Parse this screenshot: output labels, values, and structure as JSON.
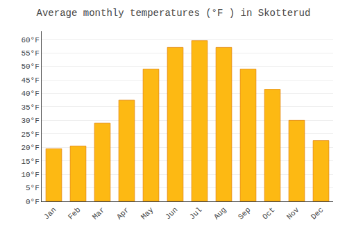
{
  "chart_data": {
    "type": "bar",
    "title": "Average monthly temperatures (°F ) in Skotterud",
    "categories": [
      "Jan",
      "Feb",
      "Mar",
      "Apr",
      "May",
      "Jun",
      "Jul",
      "Aug",
      "Sep",
      "Oct",
      "Nov",
      "Dec"
    ],
    "values": [
      19.5,
      20.5,
      29.0,
      37.5,
      49.0,
      57.0,
      59.5,
      57.0,
      49.0,
      41.5,
      30.0,
      22.5
    ],
    "color": "#FDB913",
    "ylim": [
      0,
      63
    ],
    "yticks": [
      {
        "value": 0,
        "label": "0°F"
      },
      {
        "value": 5,
        "label": "5°F"
      },
      {
        "value": 10,
        "label": "10°F"
      },
      {
        "value": 15,
        "label": "15°F"
      },
      {
        "value": 20,
        "label": "20°F"
      },
      {
        "value": 25,
        "label": "25°F"
      },
      {
        "value": 30,
        "label": "30°F"
      },
      {
        "value": 35,
        "label": "35°F"
      },
      {
        "value": 40,
        "label": "40°F"
      },
      {
        "value": 45,
        "label": "45°F"
      },
      {
        "value": 50,
        "label": "50°F"
      },
      {
        "value": 55,
        "label": "55°F"
      },
      {
        "value": 60,
        "label": "60°F"
      }
    ],
    "grid": true
  }
}
